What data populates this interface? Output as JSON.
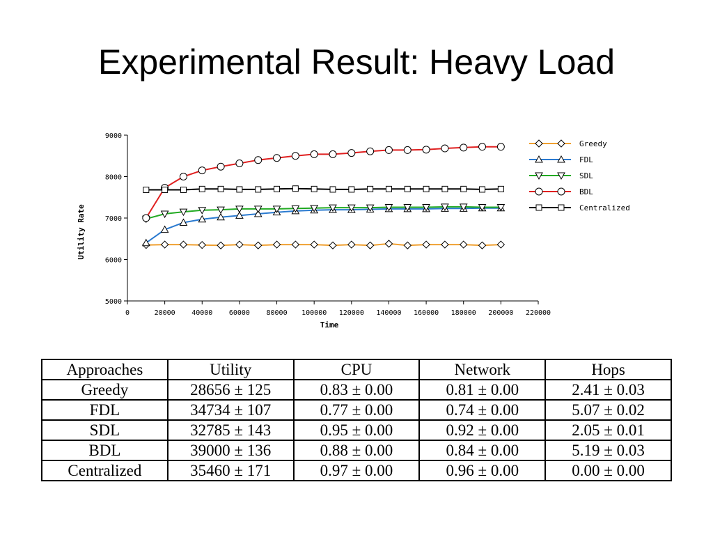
{
  "slide": {
    "title": "Experimental Result: Heavy Load"
  },
  "chart_data": {
    "type": "line",
    "xlabel": "Time",
    "ylabel": "Utility Rate",
    "xlim": [
      0,
      220000
    ],
    "ylim": [
      5000,
      9000
    ],
    "xticks": [
      0,
      20000,
      40000,
      60000,
      80000,
      100000,
      120000,
      140000,
      160000,
      180000,
      200000,
      220000
    ],
    "yticks": [
      5000,
      6000,
      7000,
      8000,
      9000
    ],
    "grid": false,
    "legend_position": "right",
    "x": [
      10000,
      20000,
      30000,
      40000,
      50000,
      60000,
      70000,
      80000,
      90000,
      100000,
      110000,
      120000,
      130000,
      140000,
      150000,
      160000,
      170000,
      180000,
      190000,
      200000
    ],
    "series": [
      {
        "name": "Greedy",
        "color": "#f0a030",
        "marker": "diamond",
        "values": [
          6350,
          6360,
          6360,
          6350,
          6340,
          6360,
          6340,
          6360,
          6360,
          6360,
          6340,
          6360,
          6340,
          6380,
          6340,
          6360,
          6360,
          6360,
          6340,
          6360
        ]
      },
      {
        "name": "FDL",
        "color": "#2a7ad0",
        "marker": "triangle-up",
        "values": [
          6400,
          6720,
          6890,
          6970,
          7020,
          7060,
          7100,
          7140,
          7170,
          7190,
          7200,
          7200,
          7210,
          7220,
          7220,
          7220,
          7230,
          7230,
          7240,
          7240
        ]
      },
      {
        "name": "SDL",
        "color": "#22aa22",
        "marker": "triangle-down",
        "values": [
          6980,
          7100,
          7150,
          7190,
          7200,
          7220,
          7220,
          7220,
          7230,
          7240,
          7250,
          7250,
          7250,
          7260,
          7260,
          7260,
          7270,
          7270,
          7260,
          7260
        ]
      },
      {
        "name": "BDL",
        "color": "#e02020",
        "marker": "circle",
        "values": [
          7000,
          7730,
          8000,
          8150,
          8240,
          8320,
          8400,
          8450,
          8500,
          8540,
          8540,
          8570,
          8610,
          8640,
          8640,
          8650,
          8680,
          8700,
          8720,
          8720
        ]
      },
      {
        "name": "Centralized",
        "color": "#000000",
        "marker": "square",
        "values": [
          7680,
          7680,
          7680,
          7700,
          7700,
          7690,
          7690,
          7700,
          7710,
          7700,
          7690,
          7690,
          7700,
          7700,
          7700,
          7700,
          7700,
          7700,
          7690,
          7700
        ]
      }
    ]
  },
  "table": {
    "headers": [
      "Approaches",
      "Utility",
      "CPU",
      "Network",
      "Hops"
    ],
    "rows": [
      [
        "Greedy",
        "28656 ± 125",
        "0.83 ± 0.00",
        "0.81 ± 0.00",
        "2.41 ± 0.03"
      ],
      [
        "FDL",
        "34734 ± 107",
        "0.77 ± 0.00",
        "0.74 ± 0.00",
        "5.07 ± 0.02"
      ],
      [
        "SDL",
        "32785 ± 143",
        "0.95 ± 0.00",
        "0.92 ± 0.00",
        "2.05 ± 0.01"
      ],
      [
        "BDL",
        "39000 ± 136",
        "0.88 ± 0.00",
        "0.84 ± 0.00",
        "5.19 ± 0.03"
      ],
      [
        "Centralized",
        "35460 ± 171",
        "0.97 ± 0.00",
        "0.96 ± 0.00",
        "0.00 ± 0.00"
      ]
    ]
  }
}
